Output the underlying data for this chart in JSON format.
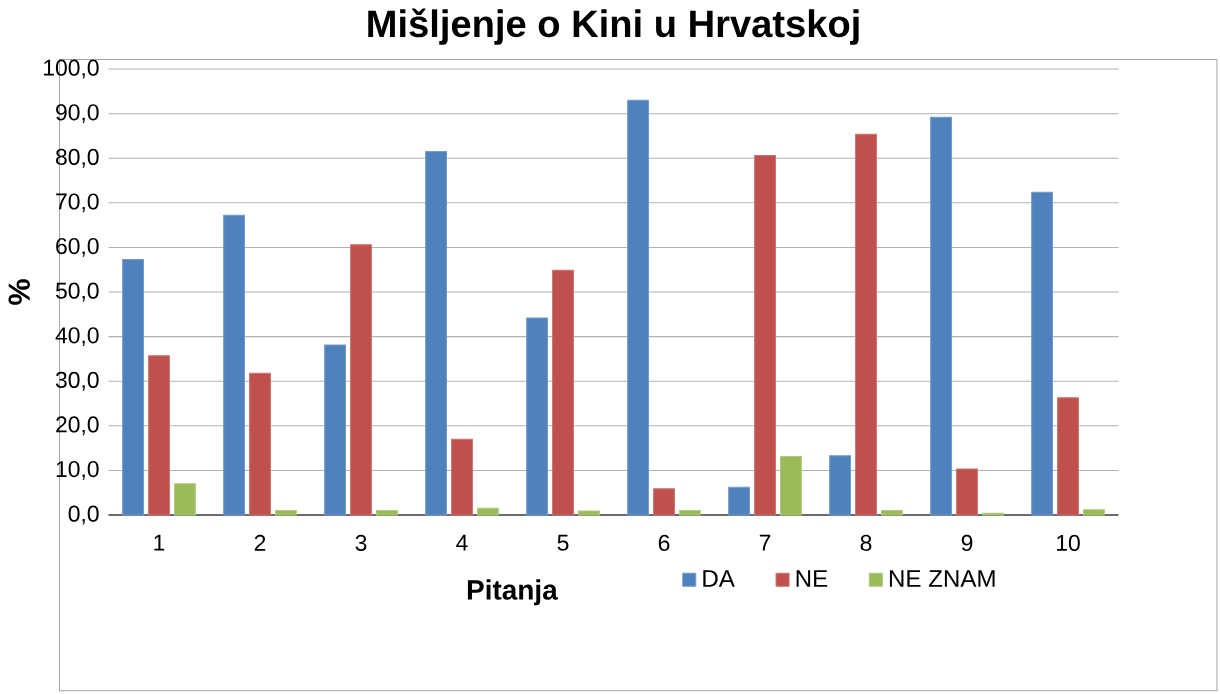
{
  "chart_data": {
    "type": "bar",
    "title": "Mišljenje o Kini u Hrvatskoj",
    "xlabel": "Pitanja",
    "ylabel": "%",
    "categories": [
      "1",
      "2",
      "3",
      "4",
      "5",
      "6",
      "7",
      "8",
      "9",
      "10"
    ],
    "series": [
      {
        "name": "DA",
        "color": "#4f81bd",
        "values": [
          57.3,
          67.2,
          38.1,
          81.5,
          44.2,
          93.0,
          6.2,
          13.3,
          89.2,
          72.4
        ]
      },
      {
        "name": "NE",
        "color": "#c0504d",
        "values": [
          35.7,
          31.8,
          60.6,
          17.0,
          54.9,
          5.9,
          80.6,
          85.4,
          10.3,
          26.3
        ]
      },
      {
        "name": "NE ZNAM",
        "color": "#9bbb59",
        "values": [
          7.0,
          1.0,
          1.0,
          1.5,
          0.9,
          1.0,
          13.1,
          1.0,
          0.4,
          1.2
        ]
      }
    ],
    "ylim": [
      0,
      100
    ],
    "yticks": [
      {
        "value": 0,
        "label": "0,0"
      },
      {
        "value": 10,
        "label": "10,0"
      },
      {
        "value": 20,
        "label": "20,0"
      },
      {
        "value": 30,
        "label": "30,0"
      },
      {
        "value": 40,
        "label": "40,0"
      },
      {
        "value": 50,
        "label": "50,0"
      },
      {
        "value": 60,
        "label": "60,0"
      },
      {
        "value": 70,
        "label": "70,0"
      },
      {
        "value": 80,
        "label": "80,0"
      },
      {
        "value": 90,
        "label": "90,0"
      },
      {
        "value": 100,
        "label": "100,0"
      }
    ],
    "grid": "y",
    "legend": "bottom right"
  }
}
